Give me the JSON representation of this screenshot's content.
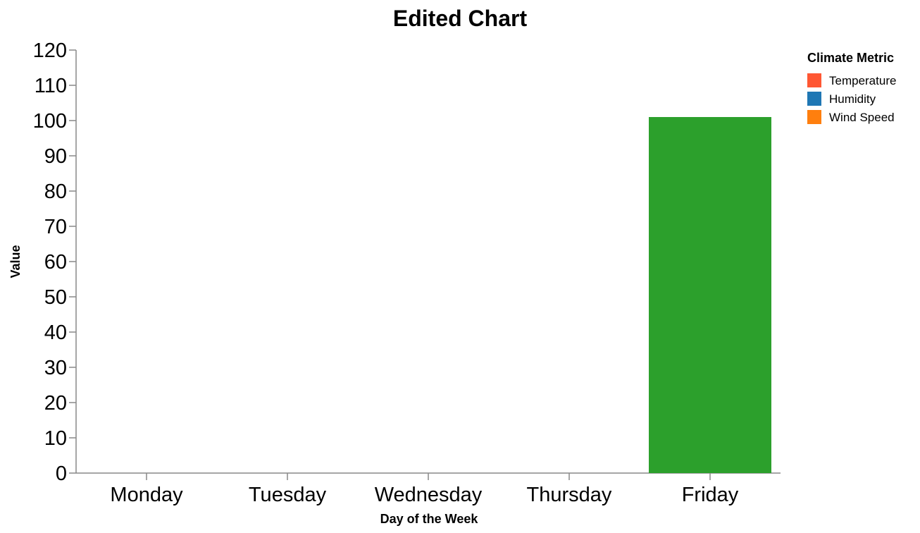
{
  "chart_data": {
    "type": "bar",
    "title": "Edited Chart",
    "xlabel": "Day of the Week",
    "ylabel": "Value",
    "categories": [
      "Monday",
      "Tuesday",
      "Wednesday",
      "Thursday",
      "Friday"
    ],
    "ylim": [
      0,
      120
    ],
    "yticks": [
      "0",
      "10",
      "20",
      "30",
      "40",
      "50",
      "60",
      "70",
      "80",
      "90",
      "100",
      "110",
      "120"
    ],
    "series": [
      {
        "values": [
          0,
          0,
          0,
          0,
          101
        ],
        "color": "#2ca02c"
      }
    ],
    "legend": {
      "title": "Climate Metric",
      "position": "right",
      "entries": [
        {
          "label": "Temperature",
          "color": "#ff5733"
        },
        {
          "label": "Humidity",
          "color": "#1f77b4"
        },
        {
          "label": "Wind Speed",
          "color": "#ff7f0e"
        }
      ]
    },
    "grid": false
  }
}
